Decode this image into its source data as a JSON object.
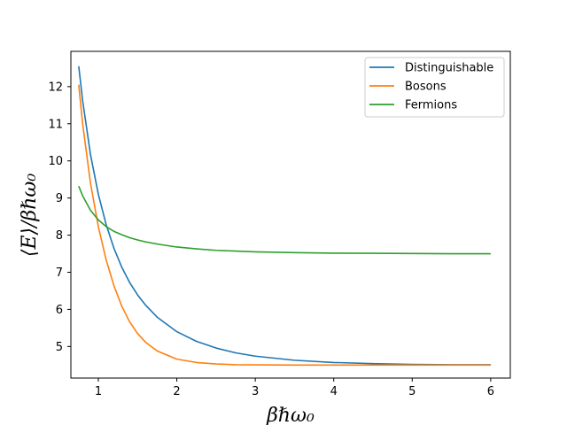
{
  "chart_data": {
    "type": "line",
    "title": "",
    "xlabel": "βℏω₀",
    "ylabel": "⟨E⟩/βℏω₀",
    "xlim": [
      0.65,
      6.25
    ],
    "ylim": [
      4.15,
      12.95
    ],
    "xticks": [
      1,
      2,
      3,
      4,
      5,
      6
    ],
    "yticks": [
      5,
      6,
      7,
      8,
      9,
      10,
      11,
      12
    ],
    "grid": false,
    "legend_position": "top-right",
    "x": [
      0.75,
      0.8,
      0.9,
      1.0,
      1.1,
      1.2,
      1.3,
      1.4,
      1.5,
      1.6,
      1.75,
      2.0,
      2.25,
      2.5,
      2.75,
      3.0,
      3.5,
      4.0,
      4.5,
      5.0,
      5.5,
      6.0
    ],
    "series": [
      {
        "name": "Distinguishable",
        "color": "#1f77b4",
        "values": [
          12.55,
          11.62,
          10.17,
          9.1,
          8.28,
          7.64,
          7.13,
          6.72,
          6.39,
          6.12,
          5.79,
          5.4,
          5.14,
          4.96,
          4.83,
          4.74,
          4.63,
          4.57,
          4.54,
          4.52,
          4.51,
          4.51
        ]
      },
      {
        "name": "Bosons",
        "color": "#ff7f0e",
        "values": [
          12.05,
          11.0,
          9.4,
          8.23,
          7.33,
          6.63,
          6.08,
          5.66,
          5.35,
          5.12,
          4.88,
          4.66,
          4.57,
          4.53,
          4.51,
          4.505,
          4.5,
          4.5,
          4.5,
          4.5,
          4.5,
          4.5
        ]
      },
      {
        "name": "Fermions",
        "color": "#2ca02c",
        "values": [
          9.32,
          9.06,
          8.67,
          8.41,
          8.23,
          8.1,
          8.01,
          7.93,
          7.87,
          7.82,
          7.76,
          7.68,
          7.63,
          7.59,
          7.57,
          7.55,
          7.53,
          7.515,
          7.51,
          7.505,
          7.5,
          7.5
        ]
      }
    ]
  }
}
